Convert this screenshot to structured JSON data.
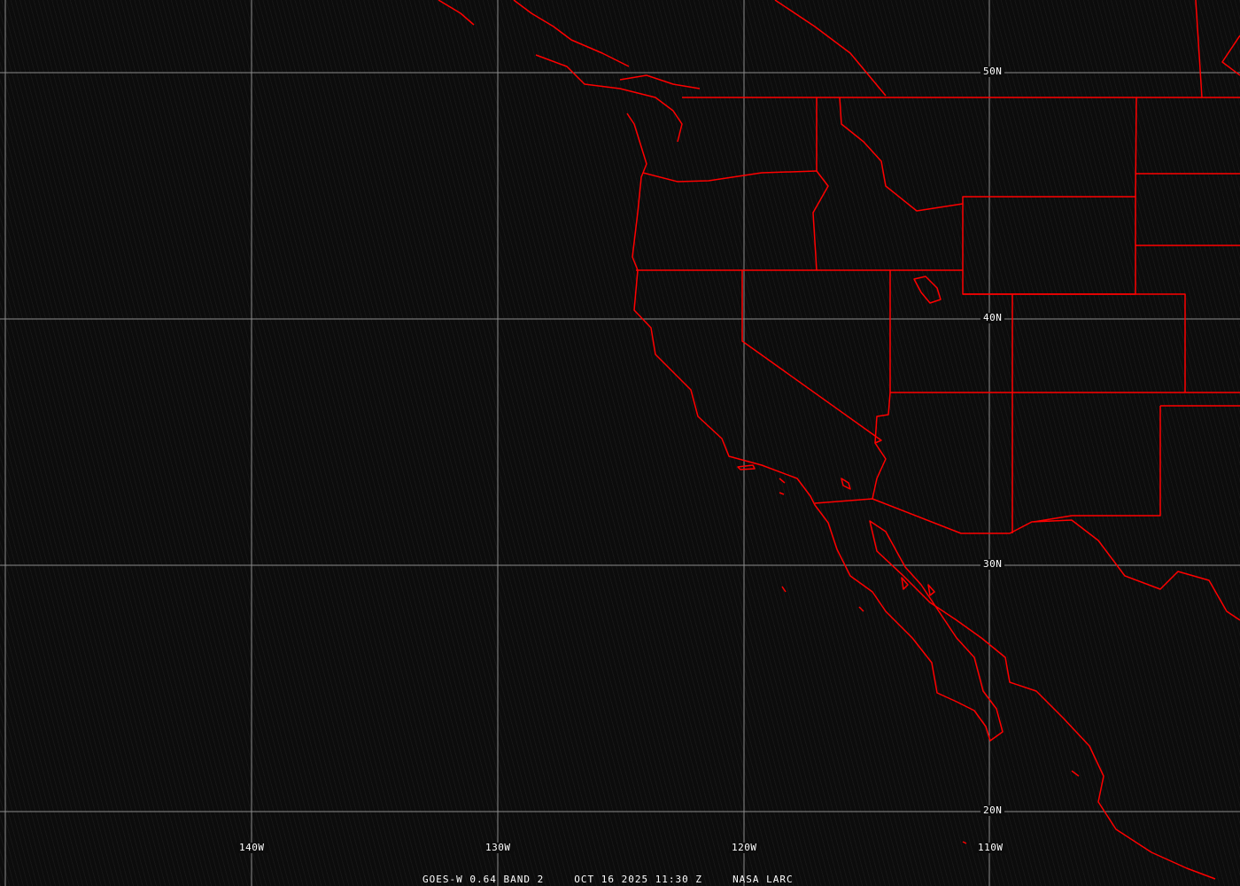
{
  "map": {
    "type": "satellite-image",
    "colors": {
      "boundaries": "#ff0000",
      "grid": "#8c8c8c",
      "background": "#0c0c0c",
      "text": "#ffffff"
    },
    "latitude_labels": [
      "50N",
      "40N",
      "30N",
      "20N"
    ],
    "longitude_labels": [
      "140W",
      "130W",
      "120W",
      "110W"
    ]
  },
  "caption": {
    "product": "GOES-W 0.64 BAND 2",
    "datetime": "OCT 16 2025 11:30 Z",
    "source": "NASA LARC"
  }
}
